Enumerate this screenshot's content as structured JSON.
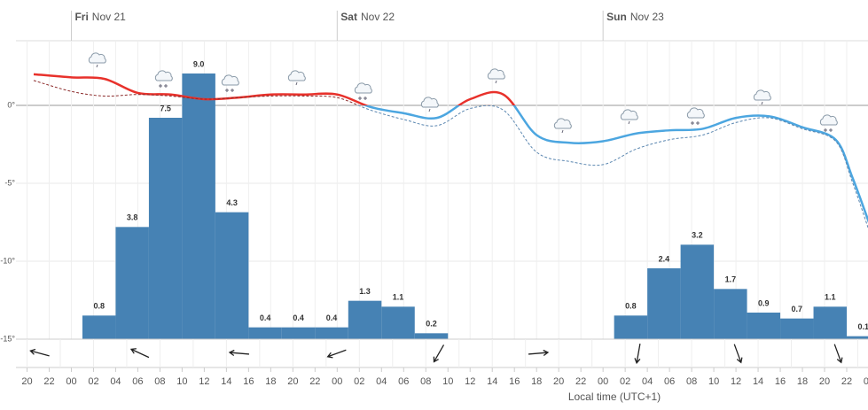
{
  "chart_data": {
    "type": "meteogram",
    "x_title": "Local time (UTC+1)",
    "xlim": [
      -5,
      71.92
    ],
    "xticks": [
      {
        "value": -4,
        "label": "20"
      },
      {
        "value": -2,
        "label": "22"
      },
      {
        "value": 0,
        "label": "00"
      },
      {
        "value": 2,
        "label": "02"
      },
      {
        "value": 4,
        "label": "04"
      },
      {
        "value": 6,
        "label": "06"
      },
      {
        "value": 8,
        "label": "08"
      },
      {
        "value": 10,
        "label": "10"
      },
      {
        "value": 12,
        "label": "12"
      },
      {
        "value": 14,
        "label": "14"
      },
      {
        "value": 16,
        "label": "16"
      },
      {
        "value": 18,
        "label": "18"
      },
      {
        "value": 20,
        "label": "20"
      },
      {
        "value": 22,
        "label": "22"
      },
      {
        "value": 24,
        "label": "00"
      },
      {
        "value": 26,
        "label": "02"
      },
      {
        "value": 28,
        "label": "04"
      },
      {
        "value": 30,
        "label": "06"
      },
      {
        "value": 32,
        "label": "08"
      },
      {
        "value": 34,
        "label": "10"
      },
      {
        "value": 36,
        "label": "12"
      },
      {
        "value": 38,
        "label": "14"
      },
      {
        "value": 40,
        "label": "16"
      },
      {
        "value": 42,
        "label": "18"
      },
      {
        "value": 44,
        "label": "20"
      },
      {
        "value": 46,
        "label": "22"
      },
      {
        "value": 48,
        "label": "00"
      },
      {
        "value": 50,
        "label": "02"
      },
      {
        "value": 52,
        "label": "04"
      },
      {
        "value": 54,
        "label": "06"
      },
      {
        "value": 56,
        "label": "08"
      },
      {
        "value": 58,
        "label": "10"
      },
      {
        "value": 60,
        "label": "12"
      },
      {
        "value": 62,
        "label": "14"
      },
      {
        "value": 64,
        "label": "16"
      },
      {
        "value": 66,
        "label": "18"
      },
      {
        "value": 68,
        "label": "20"
      },
      {
        "value": 70,
        "label": "22"
      },
      {
        "value": 72,
        "label": "00"
      }
    ],
    "day_ticks": [
      {
        "value": 0,
        "day": "Fri",
        "date": "Nov 21"
      },
      {
        "value": 24,
        "day": "Sat",
        "date": "Nov 22"
      },
      {
        "value": 48,
        "day": "Sun",
        "date": "Nov 23"
      }
    ],
    "ylim": [
      -15,
      4.15
    ],
    "yticks": [
      {
        "value": 0,
        "label": "0°"
      },
      {
        "value": -5,
        "label": "-5°"
      },
      {
        "value": -10,
        "label": "-10°"
      },
      {
        "value": -15,
        "label": "-15°"
      }
    ],
    "y2lim": [
      0,
      10.11
    ],
    "x": [
      -3.4,
      0,
      3,
      6,
      9,
      12,
      15,
      18,
      21,
      24,
      27,
      30,
      33,
      36,
      39,
      42,
      45,
      48,
      51,
      54,
      57,
      60,
      63,
      66,
      69,
      70.5,
      72
    ],
    "series": [
      {
        "style": "solid",
        "color_above": "#e8312b",
        "color_below": "#4ca6e0",
        "values": [
          2.0,
          1.8,
          1.7,
          0.8,
          0.7,
          0.4,
          0.5,
          0.7,
          0.7,
          0.7,
          -0.1,
          -0.5,
          -0.8,
          0.4,
          0.7,
          -1.9,
          -2.4,
          -2.3,
          -1.8,
          -1.6,
          -1.5,
          -0.8,
          -0.7,
          -1.4,
          -2.2,
          -4.6,
          -7.5
        ]
      },
      {
        "style": "dashed",
        "color_above": "#8b2a2a",
        "color_below": "#5a86b0",
        "values": [
          1.6,
          0.9,
          0.6,
          0.7,
          0.6,
          0.4,
          0.5,
          0.6,
          0.6,
          0.5,
          -0.3,
          -0.9,
          -1.3,
          -0.2,
          -0.3,
          -3.0,
          -3.6,
          -3.8,
          -2.8,
          -2.2,
          -1.9,
          -1.1,
          -0.8,
          -1.5,
          -2.3,
          -4.9,
          -8.0
        ]
      }
    ],
    "precipitation": {
      "axis": "y2",
      "color": "#4682b4",
      "x": [
        1,
        4,
        7,
        10,
        13,
        16,
        19,
        22,
        25,
        28,
        31,
        49,
        52,
        55,
        58,
        61,
        64,
        67,
        70
      ],
      "values": [
        0.8,
        3.8,
        7.5,
        9.0,
        4.3,
        0.4,
        0.4,
        0.4,
        1.3,
        1.1,
        0.2,
        0.8,
        2.4,
        3.2,
        1.7,
        0.9,
        0.7,
        1.1,
        0.1
      ],
      "value_labels": [
        "0.8",
        "3.8",
        "7.5",
        "9.0",
        "4.3",
        "0.4",
        "0.4",
        "0.4",
        "1.3",
        "1.1",
        "0.2",
        "0.8",
        "2.4",
        "3.2",
        "1.7",
        "0.9",
        "0.7",
        "1.1",
        "0.1"
      ]
    }
  }
}
